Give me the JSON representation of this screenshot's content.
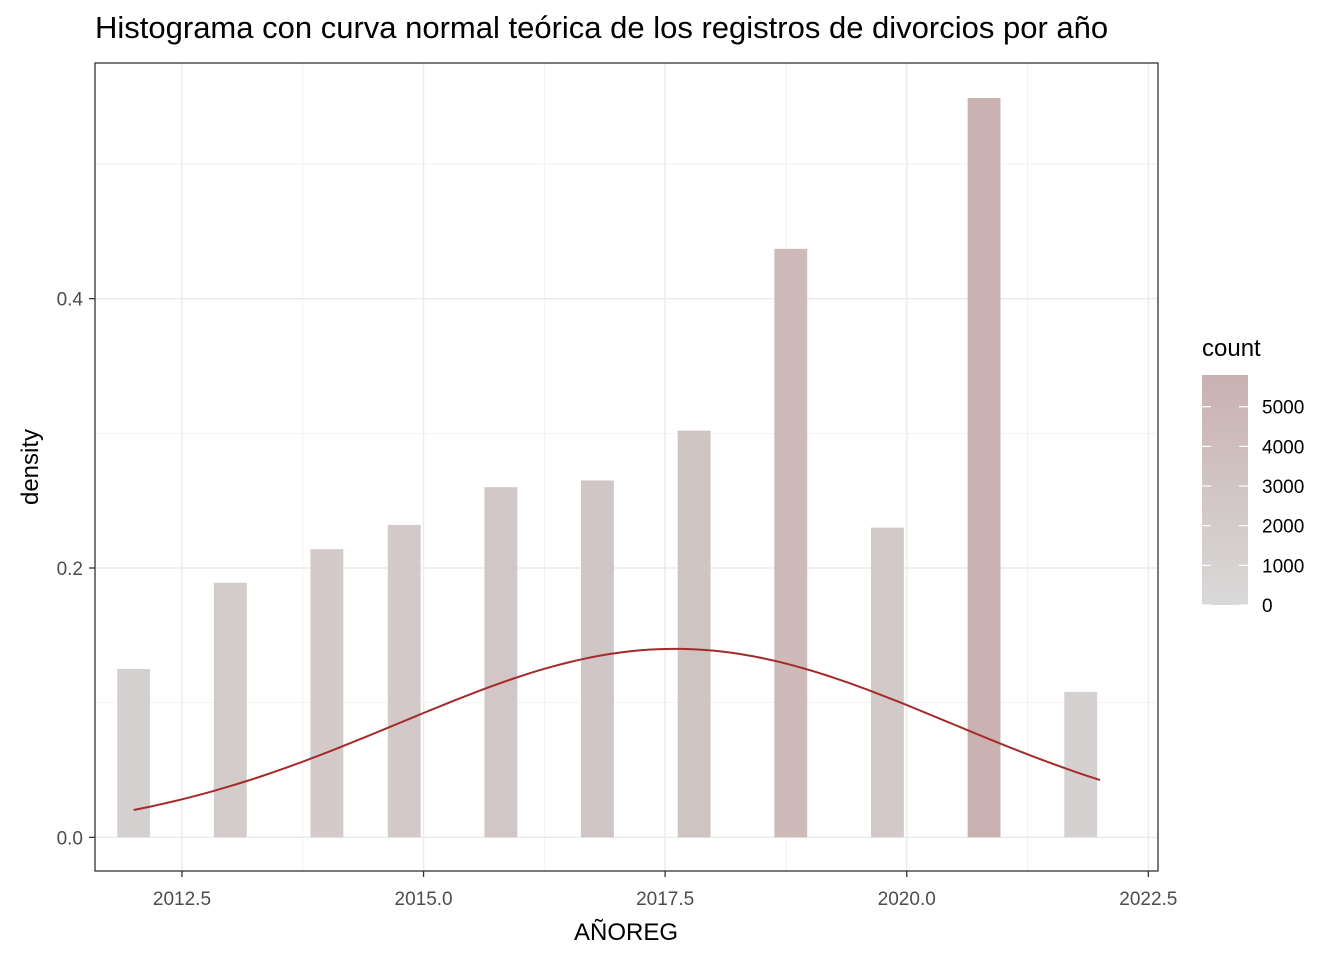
{
  "chart_data": {
    "type": "bar",
    "title": "Histograma con curva normal teórica de los registros de divorcios por año",
    "xlabel": "AÑOREG",
    "ylabel": "density",
    "xlim": [
      2011.6,
      2022.6
    ],
    "ylim": [
      -0.025,
      0.575
    ],
    "x_ticks": [
      2012.5,
      2015.0,
      2017.5,
      2020.0,
      2022.5
    ],
    "x_tick_labels": [
      "2012.5",
      "2015.0",
      "2017.5",
      "2020.0",
      "2022.5"
    ],
    "y_ticks": [
      0.0,
      0.2,
      0.4
    ],
    "y_tick_labels": [
      "0.0",
      "0.2",
      "0.4"
    ],
    "bar_width": 0.34,
    "bars": [
      {
        "x": 2012.0,
        "density": 0.125,
        "count": 1290
      },
      {
        "x": 2013.0,
        "density": 0.189,
        "count": 1950
      },
      {
        "x": 2014.0,
        "density": 0.214,
        "count": 2210
      },
      {
        "x": 2014.8,
        "density": 0.232,
        "count": 2390
      },
      {
        "x": 2015.8,
        "density": 0.26,
        "count": 2680
      },
      {
        "x": 2016.8,
        "density": 0.265,
        "count": 2730
      },
      {
        "x": 2017.8,
        "density": 0.302,
        "count": 3110
      },
      {
        "x": 2018.8,
        "density": 0.437,
        "count": 4500
      },
      {
        "x": 2019.8,
        "density": 0.23,
        "count": 2370
      },
      {
        "x": 2020.8,
        "density": 0.549,
        "count": 5650
      },
      {
        "x": 2021.8,
        "density": 0.108,
        "count": 1110
      }
    ],
    "normal_curve": {
      "mean": 2017.6,
      "sd": 2.85,
      "x_range": [
        2012.0,
        2022.0
      ],
      "color": "#a52a2a"
    },
    "fill_gradient": {
      "low": "#d9d9d9",
      "high": "#c9b1b0"
    },
    "grid": true,
    "legend": {
      "title": "count",
      "position": "right",
      "breaks": [
        0,
        1000,
        2000,
        3000,
        4000,
        5000
      ],
      "labels": [
        "0",
        "1000",
        "2000",
        "3000",
        "4000",
        "5000"
      ],
      "max": 5800
    }
  }
}
